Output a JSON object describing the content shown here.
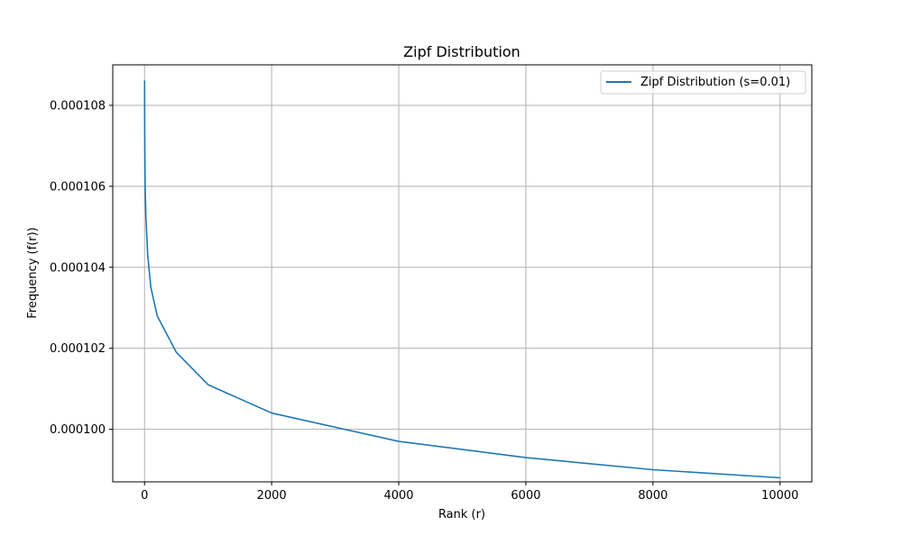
{
  "chart_data": {
    "type": "line",
    "title": "Zipf Distribution",
    "xlabel": "Rank (r)",
    "ylabel": "Frequency (f(r))",
    "xlim": [
      -500,
      10500
    ],
    "ylim": [
      9.87e-05,
      0.000109
    ],
    "x_ticks": [
      0,
      2000,
      4000,
      6000,
      8000,
      10000
    ],
    "y_ticks": [
      0.0001,
      0.000102,
      0.000104,
      0.000106,
      0.000108
    ],
    "x_tick_labels": [
      "0",
      "2000",
      "4000",
      "6000",
      "8000",
      "10000"
    ],
    "y_tick_labels": [
      "0.000100",
      "0.000102",
      "0.000104",
      "0.000106",
      "0.000108"
    ],
    "grid": true,
    "legend_position": "upper-right",
    "series": [
      {
        "name": "Zipf Distribution (s=0.01)",
        "color": "#1f77b4",
        "formula_exponent": 0.01,
        "x_range": [
          1,
          10000
        ],
        "points": [
          [
            1,
            0.0001086
          ],
          [
            2,
            0.0001078
          ],
          [
            5,
            0.0001068
          ],
          [
            10,
            0.000106
          ],
          [
            20,
            0.0001053
          ],
          [
            50,
            0.0001043
          ],
          [
            100,
            0.0001035
          ],
          [
            200,
            0.0001028
          ],
          [
            500,
            0.0001019
          ],
          [
            1000,
            0.0001011
          ],
          [
            2000,
            0.0001004
          ],
          [
            4000,
            9.97e-05
          ],
          [
            6000,
            9.93e-05
          ],
          [
            8000,
            9.9e-05
          ],
          [
            10000,
            9.88e-05
          ]
        ]
      }
    ]
  }
}
